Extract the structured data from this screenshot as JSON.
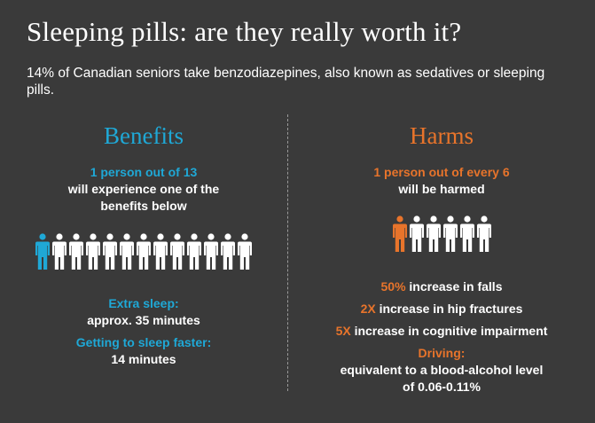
{
  "title": "Sleeping pills: are they really worth it?",
  "subtitle": "14% of Canadian seniors take benzodiazepines, also known as sedatives or sleeping pills.",
  "colors": {
    "background": "#3a3a3a",
    "blue": "#1fa8d6",
    "orange": "#e8742b",
    "text": "#ffffff"
  },
  "benefits": {
    "heading": "Benefits",
    "stat_highlight": "1 person out of 13",
    "stat_line2": "will experience one of the",
    "stat_line3": "benefits below",
    "people_total": 13,
    "people_highlighted": 1,
    "extra_sleep_label": "Extra sleep:",
    "extra_sleep_value": "approx. 35 minutes",
    "faster_label": "Getting to sleep faster:",
    "faster_value": "14 minutes"
  },
  "harms": {
    "heading": "Harms",
    "stat_highlight": "1 person out of every 6",
    "stat_line2": "will be harmed",
    "people_total": 6,
    "people_highlighted": 1,
    "falls_value": "50%",
    "falls_text": " increase in falls",
    "hip_value": "2X",
    "hip_text": " increase in hip fractures",
    "cognitive_value": "5X",
    "cognitive_text": " increase in cognitive impairment",
    "driving_label": "Driving:",
    "driving_line1": "equivalent to a blood-alcohol level",
    "driving_line2": "of 0.06-0.11%"
  }
}
